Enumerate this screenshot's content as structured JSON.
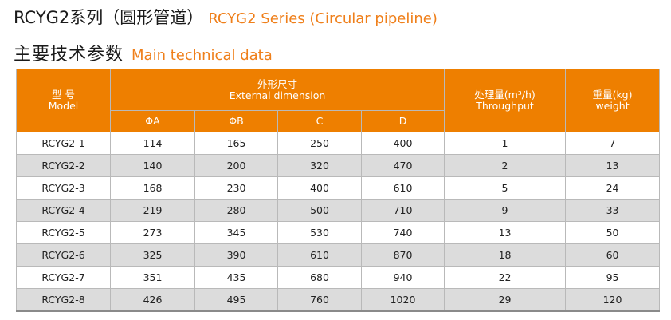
{
  "title": {
    "line1_zh": "RCYG2系列（圆形管道）",
    "line1_en": "RCYG2 Series (Circular pipeline)",
    "line2_zh": "主要技术参数",
    "line2_en": "Main technical data"
  },
  "table": {
    "header": {
      "model_zh": "型  号",
      "model_en": "Model",
      "dim_zh": "外形尺寸",
      "dim_en": "External dimension",
      "throughput_zh": "处理量(m³/h)",
      "throughput_en": "Throughput",
      "weight_zh": "重量(kg)",
      "weight_en": "weight",
      "sub": [
        "ΦA",
        "ΦB",
        "C",
        "D"
      ]
    },
    "rows": [
      [
        "RCYG2-1",
        "114",
        "165",
        "250",
        "400",
        "1",
        "7"
      ],
      [
        "RCYG2-2",
        "140",
        "200",
        "320",
        "470",
        "2",
        "13"
      ],
      [
        "RCYG2-3",
        "168",
        "230",
        "400",
        "610",
        "5",
        "24"
      ],
      [
        "RCYG2-4",
        "219",
        "280",
        "500",
        "710",
        "9",
        "33"
      ],
      [
        "RCYG2-5",
        "273",
        "345",
        "530",
        "740",
        "13",
        "50"
      ],
      [
        "RCYG2-6",
        "325",
        "390",
        "610",
        "870",
        "18",
        "60"
      ],
      [
        "RCYG2-7",
        "351",
        "435",
        "680",
        "940",
        "22",
        "95"
      ],
      [
        "RCYG2-8",
        "426",
        "495",
        "760",
        "1020",
        "29",
        "120"
      ]
    ]
  },
  "colors": {
    "accent": "#ee7f00",
    "header_text": "#ffffff",
    "row_alt": "#dcdcdc"
  }
}
